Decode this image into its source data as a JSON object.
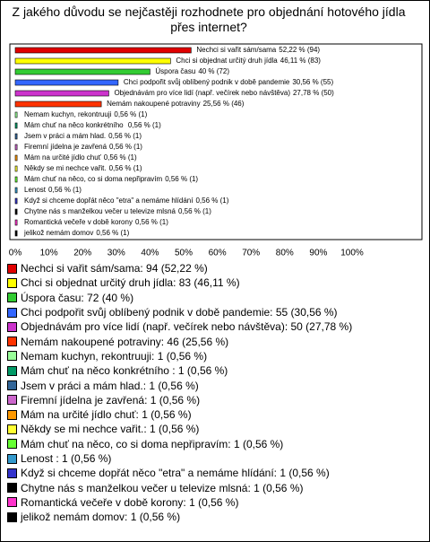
{
  "chart_data": {
    "type": "bar",
    "orientation": "horizontal",
    "title": "Z jakého důvodu se nejčastěji rozhodnete pro objednání hotového jídla přes internet?",
    "categories": [
      "Nechci si vařit sám/sama",
      "Chci si objednat určitý druh jídla",
      "Úspora času",
      "Chci podpořit svůj oblíbený podnik v době pandemie",
      "Objednávám pro více lidí (např. večírek nebo návštěva)",
      "Nemám nakoupené potraviny",
      "Nemam kuchyn, rekontruuji",
      "Mám chuť na něco konkrétního ",
      "Jsem v práci a mám hlad.",
      "Firemní jídelna je zavřená",
      "Mám na určité jídlo chuť",
      "Někdy se mi nechce vařit.",
      "Mám chuť na něco, co si doma nepřipravím",
      "Lenost",
      "Když si chceme dopřát něco \"etra\" a nemáme hlídání",
      "Chytne nás s manželkou večer u televize mlsná",
      "Romantická večeře v době korony",
      "jelikož nemám domov"
    ],
    "values": [
      52.22,
      46.11,
      40,
      30.56,
      27.78,
      25.56,
      0.56,
      0.56,
      0.56,
      0.56,
      0.56,
      0.56,
      0.56,
      0.56,
      0.56,
      0.56,
      0.56,
      0.56
    ],
    "value_labels": [
      "52,22 % (94)",
      "46,11 % (83)",
      "40 % (72)",
      "30,56 % (55)",
      "27,78 % (50)",
      "25,56 % (46)",
      "0,56 % (1)",
      "0,56 % (1)",
      "0,56 % (1)",
      "0,56 % (1)",
      "0,56 % (1)",
      "0,56 % (1)",
      "0,56 % (1)",
      "0,56 % (1)",
      "0,56 % (1)",
      "0,56 % (1)",
      "0,56 % (1)",
      "0,56 % (1)"
    ],
    "legend": [
      "Nechci si vařit sám/sama: 94 (52,22 %)",
      "Chci si objednat určitý druh jídla: 83 (46,11 %)",
      "Úspora času: 72 (40 %)",
      "Chci podpořit svůj oblíbený podnik v době pandemie: 55 (30,56 %)",
      "Objednávám pro více lidí (např. večírek nebo návštěva): 50 (27,78 %)",
      "Nemám nakoupené potraviny: 46 (25,56 %)",
      "Nemam kuchyn, rekontruuji: 1 (0,56 %)",
      "Mám chuť na něco konkrétního : 1 (0,56 %)",
      "Jsem v práci a mám hlad.: 1 (0,56 %)",
      "Firemní jídelna je zavřená: 1 (0,56 %)",
      "Mám na určité jídlo chuť: 1 (0,56 %)",
      "Někdy se mi nechce vařit.: 1 (0,56 %)",
      "Mám chuť na něco, co si doma nepřipravím: 1 (0,56 %)",
      "Lenost : 1 (0,56 %)",
      "Když si chceme dopřát něco \"etra\" a nemáme hlídání: 1 (0,56 %)",
      "Chytne nás s manželkou večer u televize mlsná: 1 (0,56 %)",
      "Romantická večeře v době korony: 1 (0,56 %)",
      "jelikož nemám domov: 1 (0,56 %)"
    ],
    "colors": [
      "#e00000",
      "#ffff00",
      "#33cc33",
      "#3366ff",
      "#cc33cc",
      "#ff3300",
      "#99ff99",
      "#009966",
      "#336699",
      "#cc66cc",
      "#ff9900",
      "#ffff33",
      "#66ff33",
      "#3399cc",
      "#3333cc",
      "#000000",
      "#ff33cc",
      "#000000"
    ],
    "xlim": [
      0,
      100
    ],
    "xticks": [
      {
        "value": 0,
        "label": "0%"
      },
      {
        "value": 10,
        "label": "10%"
      },
      {
        "value": 20,
        "label": "20%"
      },
      {
        "value": 30,
        "label": "30%"
      },
      {
        "value": 40,
        "label": "40%"
      },
      {
        "value": 50,
        "label": "50%"
      },
      {
        "value": 60,
        "label": "60%"
      },
      {
        "value": 70,
        "label": "70%"
      },
      {
        "value": 80,
        "label": "80%"
      },
      {
        "value": 90,
        "label": "90%"
      },
      {
        "value": 100,
        "label": "100%"
      }
    ]
  }
}
